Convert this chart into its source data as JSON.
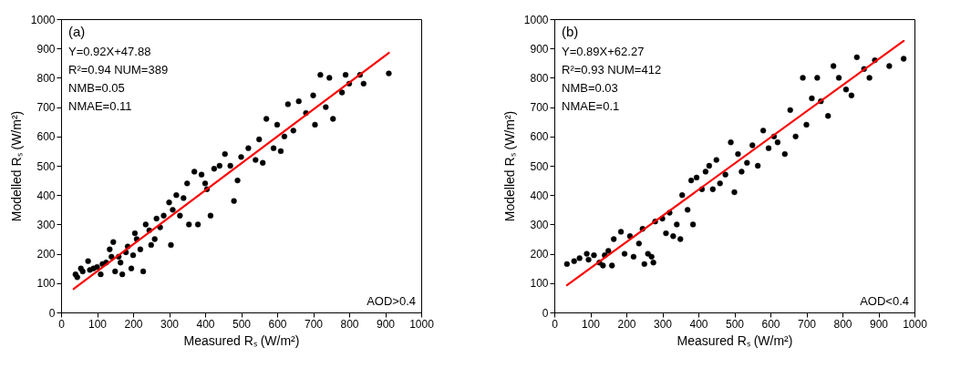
{
  "chart_data": [
    {
      "type": "scatter",
      "xlabel": "Measured Rₛ (W/m²)",
      "ylabel": "Modelled Rₛ (W/m²)",
      "xlim": [
        0,
        1000
      ],
      "ylim": [
        0,
        1000
      ],
      "xticks": [
        0,
        100,
        200,
        300,
        400,
        500,
        600,
        700,
        800,
        900,
        1000
      ],
      "yticks": [
        0,
        100,
        200,
        300,
        400,
        500,
        600,
        700,
        800,
        900,
        1000
      ],
      "annotations": [
        "(a)",
        "Y=0.92X+47.88",
        "R²=0.94  NUM=389",
        "NMB=0.05",
        "NMAE=0.11",
        "AOD>0.4"
      ],
      "series": [
        {
          "type": "scatter",
          "marker": "circle",
          "color": "#000000",
          "x": [
            40,
            45,
            55,
            60,
            75,
            80,
            90,
            100,
            110,
            115,
            125,
            135,
            140,
            145,
            150,
            160,
            165,
            170,
            180,
            185,
            195,
            200,
            205,
            210,
            220,
            228,
            235,
            245,
            250,
            260,
            265,
            275,
            285,
            300,
            305,
            310,
            320,
            330,
            340,
            350,
            355,
            370,
            380,
            390,
            400,
            405,
            415,
            425,
            440,
            455,
            470,
            480,
            490,
            500,
            520,
            540,
            550,
            560,
            570,
            590,
            600,
            610,
            620,
            630,
            645,
            660,
            680,
            700,
            705,
            720,
            735,
            745,
            755,
            780,
            790,
            800,
            830,
            840,
            910
          ],
          "values": [
            130,
            120,
            150,
            140,
            175,
            145,
            150,
            155,
            130,
            165,
            170,
            215,
            190,
            240,
            140,
            190,
            170,
            130,
            205,
            225,
            150,
            195,
            270,
            250,
            215,
            140,
            300,
            280,
            230,
            250,
            320,
            290,
            330,
            375,
            230,
            350,
            400,
            330,
            390,
            440,
            300,
            480,
            300,
            470,
            440,
            420,
            330,
            490,
            500,
            540,
            500,
            380,
            450,
            530,
            560,
            520,
            590,
            510,
            660,
            560,
            640,
            550,
            600,
            710,
            620,
            720,
            680,
            740,
            640,
            810,
            700,
            800,
            660,
            750,
            810,
            780,
            810,
            780,
            815
          ]
        },
        {
          "type": "line",
          "color": "#ff0000",
          "x": [
            35,
            910
          ],
          "values": [
            80,
            885
          ]
        }
      ]
    },
    {
      "type": "scatter",
      "xlabel": "Measured Rₛ (W/m²)",
      "ylabel": "Modelled Rₛ (W/m²)",
      "xlim": [
        0,
        1000
      ],
      "ylim": [
        0,
        1000
      ],
      "xticks": [
        0,
        100,
        200,
        300,
        400,
        500,
        600,
        700,
        800,
        900,
        1000
      ],
      "yticks": [
        0,
        100,
        200,
        300,
        400,
        500,
        600,
        700,
        800,
        900,
        1000
      ],
      "annotations": [
        "(b)",
        "Y=0.89X+62.27",
        "R²=0.93  NUM=412",
        "NMB=0.03",
        "NMAE=0.1",
        "AOD<0.4"
      ],
      "series": [
        {
          "type": "scatter",
          "marker": "circle",
          "color": "#000000",
          "x": [
            35,
            55,
            70,
            90,
            95,
            110,
            125,
            135,
            140,
            150,
            160,
            165,
            185,
            195,
            210,
            220,
            235,
            245,
            250,
            260,
            270,
            275,
            280,
            300,
            310,
            320,
            330,
            340,
            350,
            355,
            370,
            380,
            385,
            395,
            410,
            420,
            430,
            440,
            450,
            460,
            475,
            490,
            500,
            510,
            520,
            535,
            550,
            565,
            580,
            595,
            610,
            620,
            640,
            655,
            670,
            690,
            700,
            715,
            730,
            740,
            760,
            775,
            790,
            810,
            825,
            840,
            860,
            875,
            890,
            930,
            970
          ],
          "values": [
            165,
            175,
            185,
            200,
            180,
            195,
            170,
            160,
            195,
            210,
            160,
            250,
            275,
            200,
            260,
            190,
            235,
            285,
            165,
            200,
            190,
            170,
            310,
            320,
            270,
            340,
            260,
            300,
            250,
            400,
            350,
            450,
            300,
            460,
            420,
            480,
            500,
            420,
            520,
            440,
            470,
            580,
            410,
            540,
            480,
            510,
            570,
            500,
            620,
            560,
            600,
            580,
            540,
            690,
            600,
            800,
            640,
            730,
            800,
            720,
            670,
            840,
            800,
            760,
            740,
            870,
            830,
            800,
            860,
            840,
            865
          ]
        },
        {
          "type": "line",
          "color": "#ff0000",
          "x": [
            35,
            970
          ],
          "values": [
            93,
            926
          ]
        }
      ]
    }
  ]
}
